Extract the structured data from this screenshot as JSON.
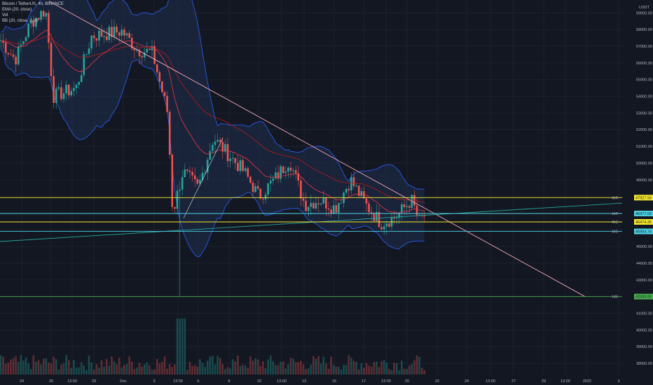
{
  "legend": {
    "symbol": "Bitcoin / TetherUS, 4h, BINANCE",
    "ema": "EMA (20, close)",
    "vol": "Vol",
    "bb": "BB (20, close, 2, 0)"
  },
  "colors": {
    "background": "#131722",
    "up": "#26a69a",
    "down": "#ef5350",
    "grid": "#1e222d",
    "axis_text": "#b2b5be",
    "ema": "#f23645",
    "bb": "#2962ff",
    "bb_fill": "#1f2d4d",
    "trendline": "#f7a8b8",
    "support_line": "#26a69a",
    "yellow_line": "#f5e92d",
    "cyan_line": "#4dd0e1",
    "green_line": "#4caf50"
  },
  "chart_data": {
    "type": "candlestick",
    "currency": "USDT",
    "ylim": [
      37500,
      59600
    ],
    "y_ticks": [
      "59000.00",
      "58000.00",
      "57000.00",
      "56000.00",
      "55000.00",
      "54000.00",
      "53000.00",
      "52000.00",
      "51000.00",
      "50000.00",
      "49000.00",
      "48000.00",
      "47000.00",
      "46000.00",
      "45000.00",
      "44000.00",
      "43000.00",
      "42000.00",
      "41000.00",
      "40000.00",
      "39000.00",
      "38000.00"
    ],
    "x_ticks": [
      "24",
      "26",
      "13:00",
      "29",
      "Dec",
      "3",
      "13:00",
      "6",
      "8",
      "10",
      "13:00",
      "13",
      "15",
      "17",
      "13:00",
      "20",
      "22",
      "24",
      "13:00",
      "27",
      "29",
      "13:00",
      "2022",
      "3"
    ],
    "ohlc_keypoints": [
      [
        "2021-11-23",
        57400
      ],
      [
        "2021-11-24",
        56200
      ],
      [
        "2021-11-25",
        58400
      ],
      [
        "2021-11-26",
        59200
      ],
      [
        "2021-11-26 12:00",
        54000
      ],
      [
        "2021-11-28",
        54500
      ],
      [
        "2021-11-29",
        57600
      ],
      [
        "2021-12-01",
        57900
      ],
      [
        "2021-12-02",
        56800
      ],
      [
        "2021-12-03",
        56600
      ],
      [
        "2021-12-04 00:00",
        53000
      ],
      [
        "2021-12-04 08:00",
        47000
      ],
      [
        "2021-12-05",
        49500
      ],
      [
        "2021-12-06",
        48500
      ],
      [
        "2021-12-07",
        51500
      ],
      [
        "2021-12-08",
        50500
      ],
      [
        "2021-12-09",
        49500
      ],
      [
        "2021-12-10",
        48000
      ],
      [
        "2021-12-11",
        49000
      ],
      [
        "2021-12-12",
        50200
      ],
      [
        "2021-12-13",
        47500
      ],
      [
        "2021-12-14",
        47800
      ],
      [
        "2021-12-15",
        47300
      ],
      [
        "2021-12-16",
        49000
      ],
      [
        "2021-12-17",
        47500
      ],
      [
        "2021-12-18",
        46400
      ],
      [
        "2021-12-19",
        46800
      ],
      [
        "2021-12-20",
        47800
      ],
      [
        "2021-12-20 12:00",
        46500
      ],
      [
        "2021-12-21",
        47000
      ]
    ],
    "horizontal_levels": [
      {
        "price": 47927.93,
        "label": "47927.93",
        "tag": "4hR",
        "color": "yellow"
      },
      {
        "price": 46977.69,
        "label": "46977.69",
        "tag": "1hR",
        "color": "cyan"
      },
      {
        "price": 46474.26,
        "label": "46474.26",
        "tag": "4hS",
        "color": "yellow"
      },
      {
        "price": 45904.74,
        "label": "45904.74",
        "tag": "1hS",
        "color": "cyan"
      },
      {
        "price": 42000.0,
        "label": "42000.00",
        "tag": "1dS",
        "color": "green"
      }
    ],
    "volume": "histogram below price",
    "indicators": [
      "EMA 20",
      "Bollinger Bands 20, 2"
    ],
    "drawn_lines": [
      "descending trendline",
      "ascending support line"
    ],
    "grid": true
  }
}
